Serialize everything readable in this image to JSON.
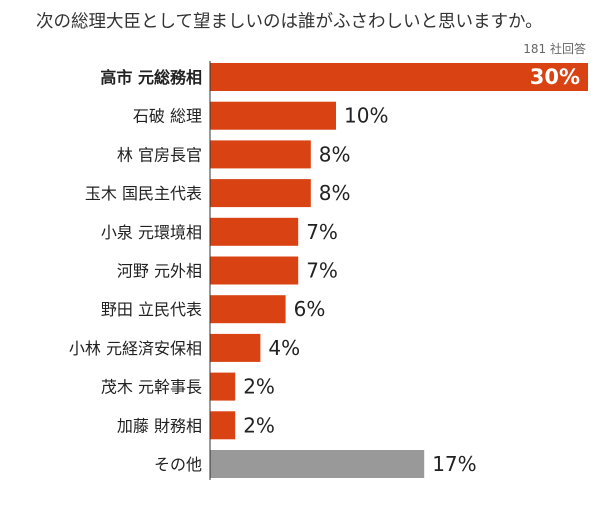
{
  "header": {
    "title": "次の総理大臣として望ましいのは誰がふさわしいと思いますか。",
    "note": "181 社回答"
  },
  "colors": {
    "bar": "#d94212",
    "other_bar": "#999999",
    "axis": "#333333"
  },
  "chart_data": {
    "type": "bar",
    "orientation": "horizontal",
    "categories": [
      "高市 元総務相",
      "石破 総理",
      "林 官房長官",
      "玉木 国民主代表",
      "小泉 元環境相",
      "河野 元外相",
      "野田 立民代表",
      "小林 元経済安保相",
      "茂木 元幹事長",
      "加藤 財務相",
      "その他"
    ],
    "values": [
      30,
      10,
      8,
      8,
      7,
      7,
      6,
      4,
      2,
      2,
      17
    ],
    "value_labels": [
      "30%",
      "10%",
      "8%",
      "8%",
      "7%",
      "7%",
      "6%",
      "4%",
      "2%",
      "2%",
      "17%"
    ],
    "unit": "%",
    "highlight_index": 0,
    "other_index": 10,
    "xlim": [
      0,
      30
    ]
  }
}
